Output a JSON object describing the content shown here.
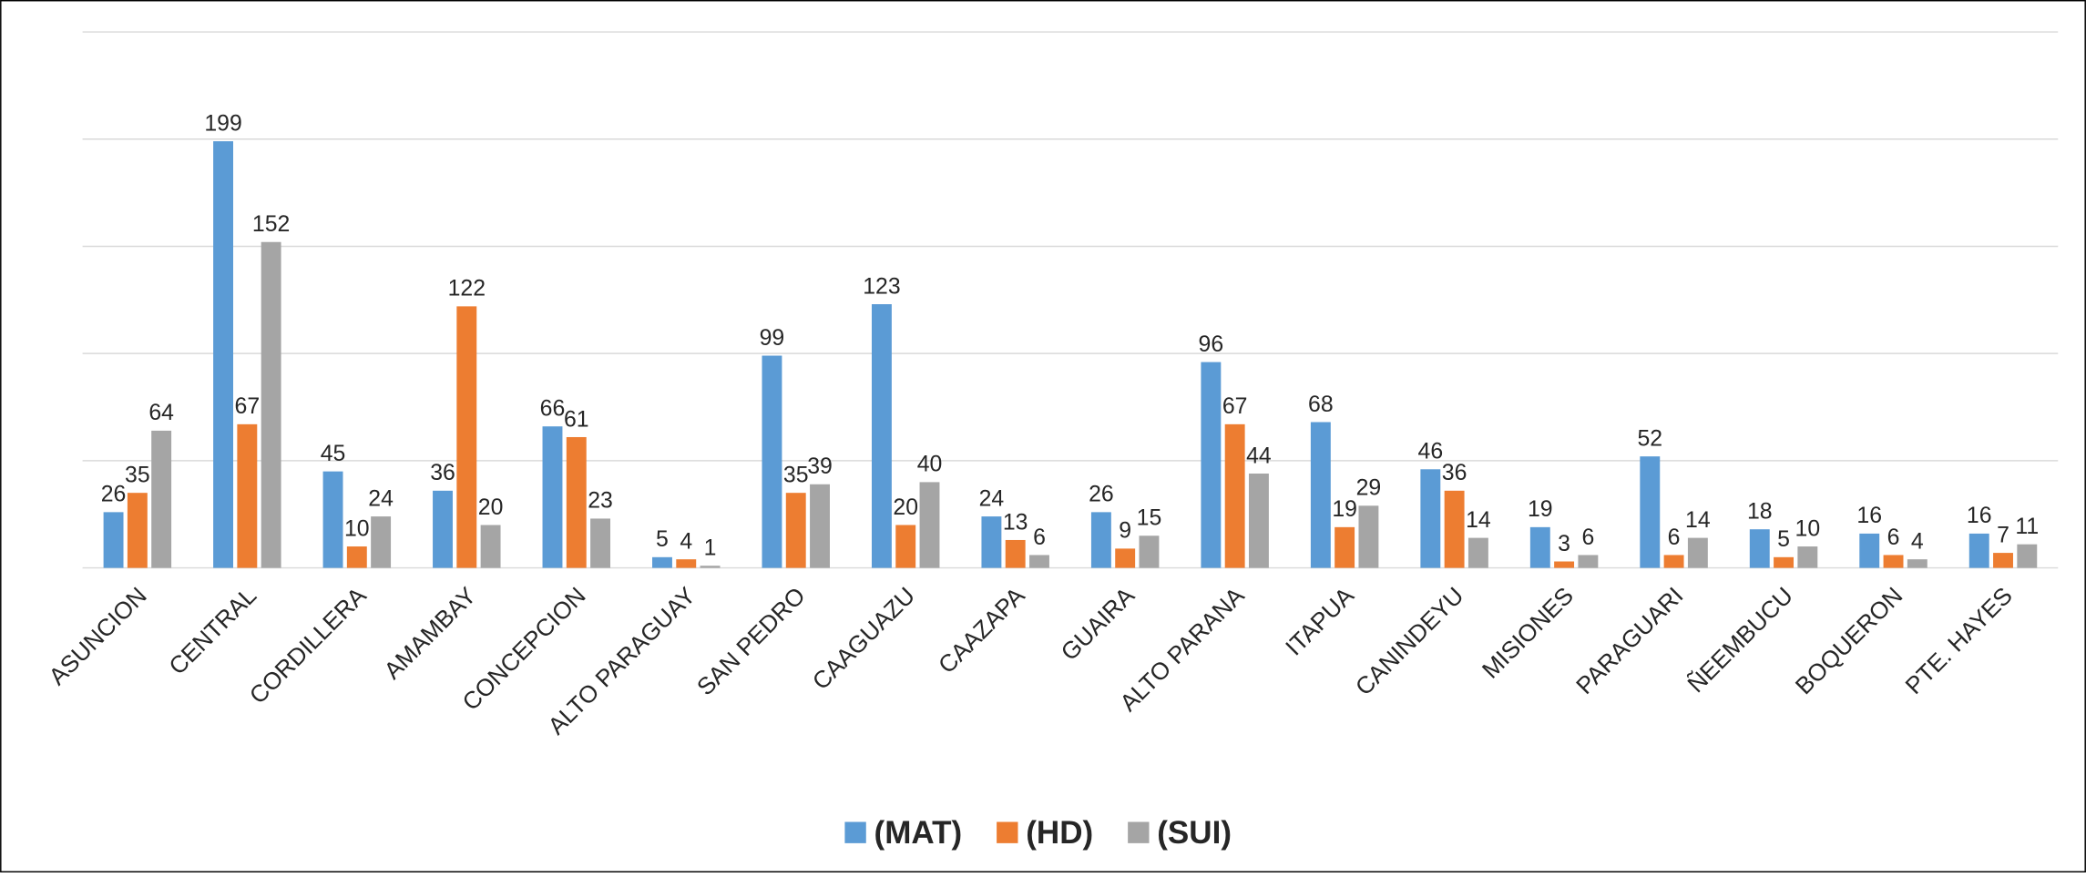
{
  "chart_data": {
    "type": "bar",
    "categories": [
      "ASUNCION",
      "CENTRAL",
      "CORDILLERA",
      "AMAMBAY",
      "CONCEPCION",
      "ALTO PARAGUAY",
      "SAN PEDRO",
      "CAAGUAZU",
      "CAAZAPA",
      "GUAIRA",
      "ALTO PARANA",
      "ITAPUA",
      "CANINDEYU",
      "MISIONES",
      "PARAGUARI",
      "ÑEEMBUCU",
      "BOQUERON",
      "PTE. HAYES"
    ],
    "series": [
      {
        "name": "(MAT)",
        "color": "#5b9bd5",
        "values": [
          26,
          199,
          45,
          36,
          66,
          5,
          99,
          123,
          24,
          26,
          96,
          68,
          46,
          19,
          52,
          18,
          16,
          16
        ]
      },
      {
        "name": "(HD)",
        "color": "#ed7d31",
        "values": [
          35,
          67,
          10,
          122,
          61,
          4,
          35,
          20,
          13,
          9,
          67,
          19,
          36,
          3,
          6,
          5,
          6,
          7
        ]
      },
      {
        "name": "(SUI)",
        "color": "#a5a5a5",
        "values": [
          64,
          152,
          24,
          20,
          23,
          1,
          39,
          40,
          6,
          15,
          44,
          29,
          14,
          6,
          14,
          10,
          4,
          11
        ]
      }
    ],
    "ylim": [
      0,
      250
    ],
    "yticks": [
      0,
      50,
      100,
      150,
      200,
      250
    ],
    "grid": true,
    "legend": "bottom"
  }
}
